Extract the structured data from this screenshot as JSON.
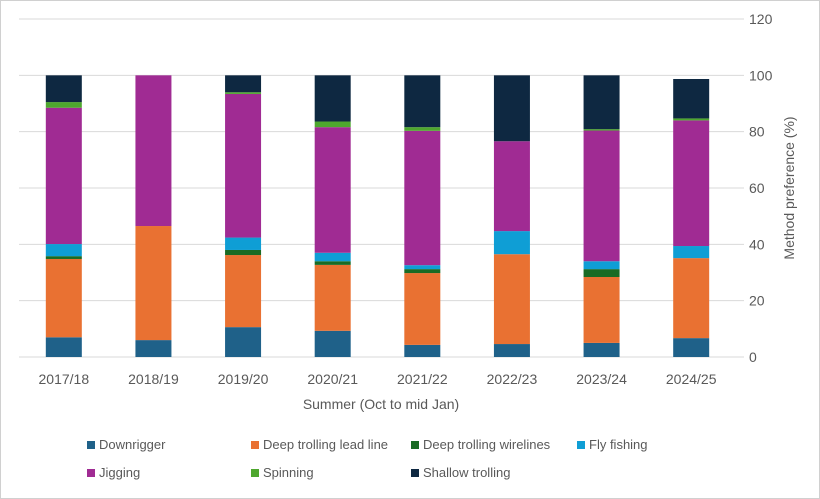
{
  "chart_data": {
    "type": "bar",
    "stacked": true,
    "title": "",
    "xlabel": "Summer (Oct to mid Jan)",
    "ylabel": "Method preference (%)",
    "ylim": [
      0,
      120
    ],
    "yticks": [
      0,
      20,
      40,
      60,
      80,
      100,
      120
    ],
    "grid": true,
    "y_axis_side": "right",
    "legend_position": "bottom",
    "categories": [
      "2017/18",
      "2018/19",
      "2019/20",
      "2020/21",
      "2021/22",
      "2022/23",
      "2023/24",
      "2024/25"
    ],
    "series": [
      {
        "name": "Downrigger",
        "color": "#1f6189",
        "values": [
          7.0,
          6.0,
          10.6,
          9.3,
          4.3,
          4.6,
          5.0,
          6.7
        ]
      },
      {
        "name": "Deep trolling lead line",
        "color": "#e97132",
        "values": [
          27.8,
          40.5,
          25.6,
          23.4,
          25.5,
          31.9,
          23.4,
          28.4
        ]
      },
      {
        "name": "Deep trolling wirelines",
        "color": "#196b24",
        "values": [
          1.0,
          0,
          1.8,
          1.3,
          1.4,
          0,
          2.8,
          0
        ]
      },
      {
        "name": "Fly fishing",
        "color": "#0f9ed5",
        "values": [
          4.3,
          0,
          4.4,
          3.0,
          1.4,
          8.2,
          2.8,
          4.3
        ]
      },
      {
        "name": "Jigging",
        "color": "#a02b93",
        "values": [
          48.4,
          53.5,
          51.0,
          44.6,
          47.7,
          31.9,
          46.4,
          44.6
        ]
      },
      {
        "name": "Spinning",
        "color": "#4ea72e",
        "values": [
          2.0,
          0,
          0.6,
          2.0,
          1.3,
          0,
          0.5,
          0.7
        ]
      },
      {
        "name": "Shallow trolling",
        "color": "#0e2841",
        "values": [
          9.5,
          0,
          6.0,
          16.4,
          18.4,
          23.4,
          19.1,
          14.0
        ]
      }
    ]
  }
}
